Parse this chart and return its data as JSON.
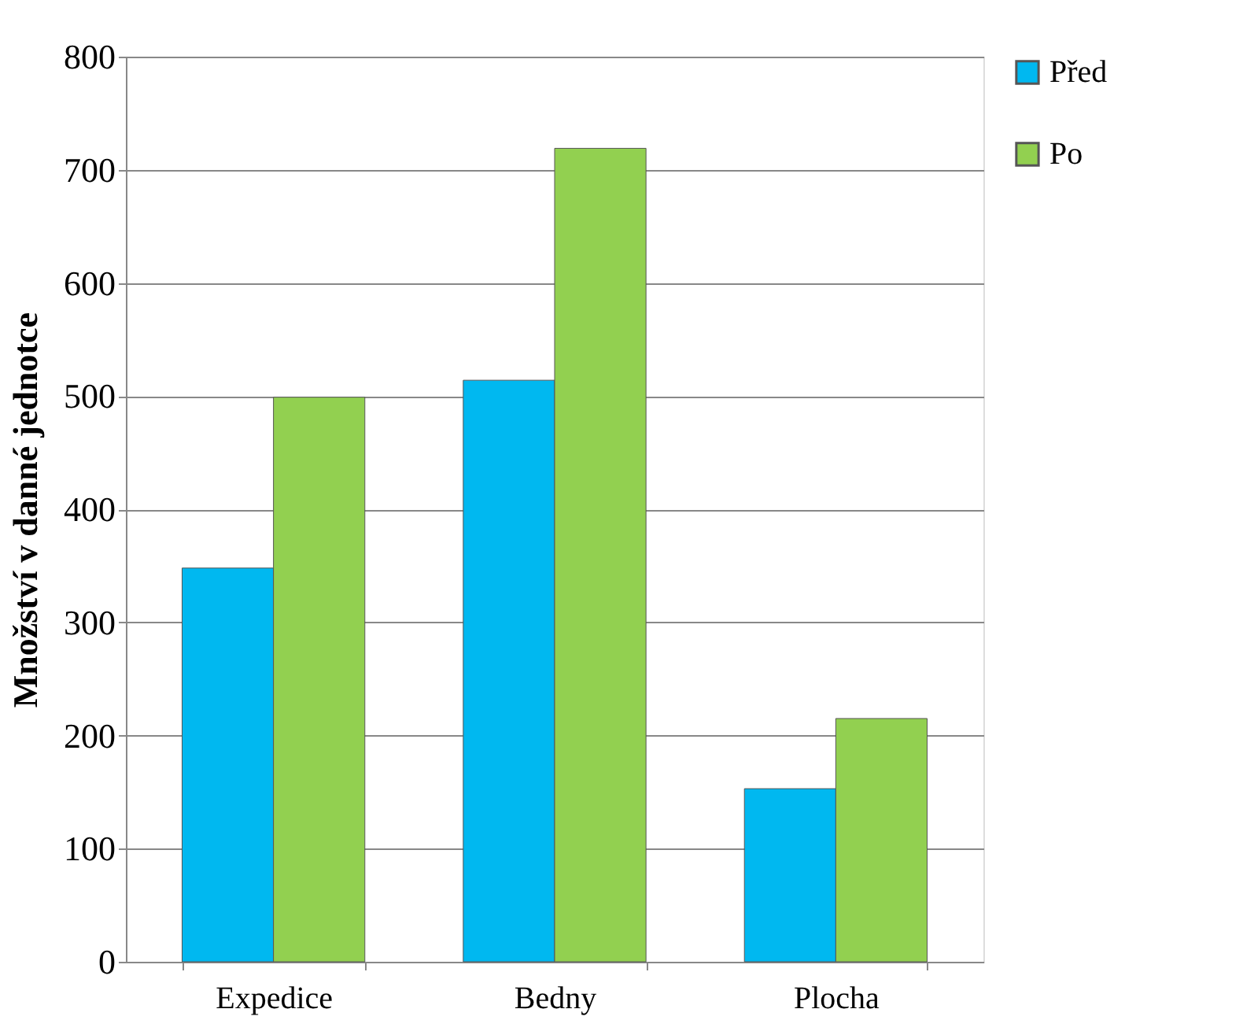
{
  "chart_data": {
    "type": "bar",
    "ylabel": "Množství v danné jednotce",
    "categories": [
      "Expedice",
      "Bedny",
      "Plocha"
    ],
    "series": [
      {
        "name": "Před",
        "color": "#00b8f0",
        "values": [
          348,
          514,
          153
        ]
      },
      {
        "name": "Po",
        "color": "#92d050",
        "values": [
          499,
          719,
          215
        ]
      }
    ],
    "ylim": [
      0,
      800
    ],
    "yticks": [
      0,
      100,
      200,
      300,
      400,
      500,
      600,
      700,
      800
    ],
    "grid": "y",
    "legend": "right"
  }
}
